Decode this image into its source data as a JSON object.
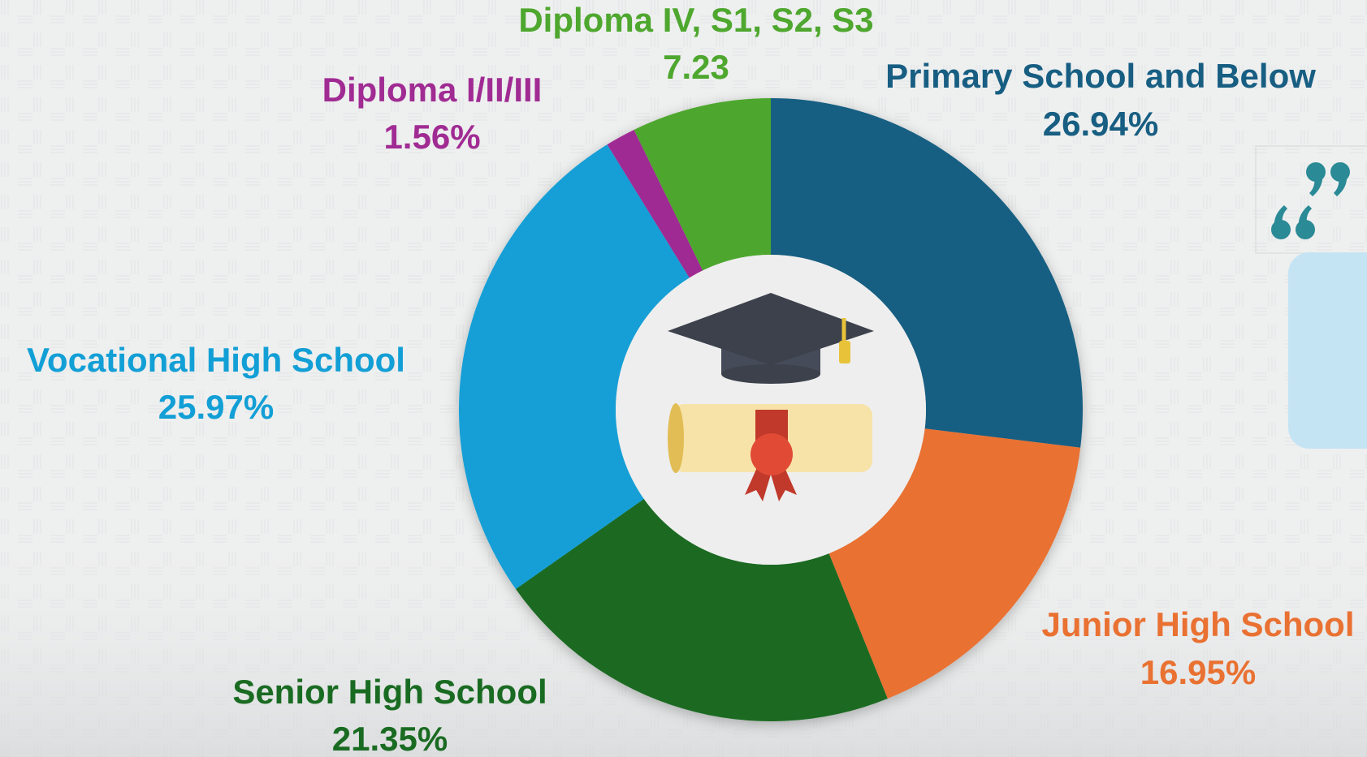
{
  "chart_data": {
    "type": "donut",
    "categories": [
      "Primary School and Below",
      "Junior High School",
      "Senior High School",
      "Vocational High School",
      "Diploma I/II/III",
      "Diploma IV, S1, S2, S3"
    ],
    "values": [
      26.94,
      16.95,
      21.35,
      25.97,
      1.56,
      7.23
    ],
    "value_labels": [
      "26.94%",
      "16.95%",
      "21.35%",
      "25.97%",
      "1.56%",
      "7.23"
    ],
    "colors": [
      "#175e82",
      "#e97132",
      "#1a6b22",
      "#129fd6",
      "#a02b93",
      "#4ea72e"
    ]
  }
}
